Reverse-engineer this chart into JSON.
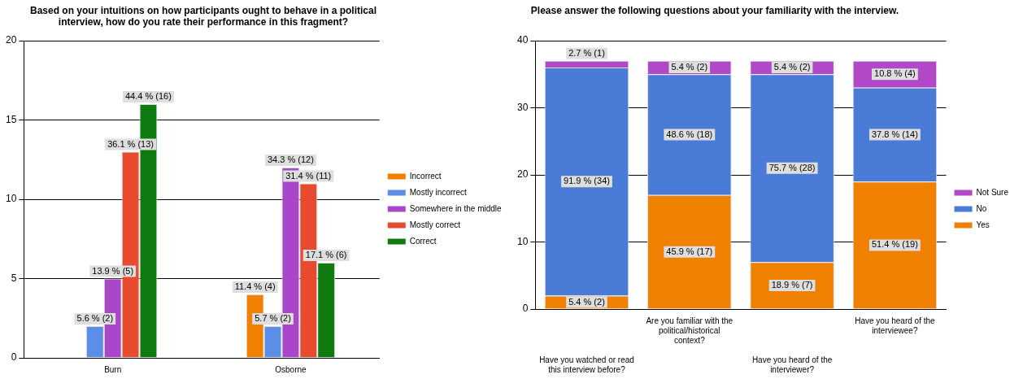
{
  "chart_data": [
    {
      "type": "bar",
      "title": "Based on your intuitions on how participants ought to behave in a political interview, how do you rate their performance in this fragment?",
      "categories": [
        "Burn",
        "Osborne"
      ],
      "series": [
        {
          "name": "Incorrect",
          "color": "#f08000",
          "values": [
            0,
            4
          ],
          "value_labels": [
            null,
            "11.4 % (4)"
          ]
        },
        {
          "name": "Mostly incorrect",
          "color": "#5b8ee6",
          "values": [
            2,
            2
          ],
          "value_labels": [
            "5.6 % (2)",
            "5.7 % (2)"
          ]
        },
        {
          "name": "Somewhere in the middle",
          "color": "#a847c8",
          "values": [
            5,
            12
          ],
          "value_labels": [
            "13.9 % (5)",
            "34.3 % (12)"
          ]
        },
        {
          "name": "Mostly correct",
          "color": "#e84a2e",
          "values": [
            13,
            11
          ],
          "value_labels": [
            "36.1 % (13)",
            "31.4 % (11)"
          ]
        },
        {
          "name": "Correct",
          "color": "#0f7a0f",
          "values": [
            16,
            6
          ],
          "value_labels": [
            "44.4 % (16)",
            "17.1 % (6)"
          ]
        }
      ],
      "ylim": [
        0,
        20
      ],
      "yticks": [
        0,
        5,
        10,
        15,
        20
      ],
      "grid": "y",
      "legend": "right"
    },
    {
      "type": "bar",
      "title": "Please answer the following questions about your familiarity with the interview.",
      "categories": [
        "Have you watched or read this interview before?",
        "Are you familiar with the political/historical context?",
        "Have you heard of the interviewer?",
        "Have you heard of the interviewee?"
      ],
      "stacked": true,
      "series": [
        {
          "name": "Yes",
          "color": "#f08000",
          "values": [
            2,
            17,
            7,
            19
          ],
          "value_labels": [
            "5.4 % (2)",
            "45.9 % (17)",
            "18.9 % (7)",
            "51.4 % (19)"
          ]
        },
        {
          "name": "No",
          "color": "#4a7bd6",
          "values": [
            34,
            18,
            28,
            14
          ],
          "value_labels": [
            "91.9 % (34)",
            "48.6 % (18)",
            "75.7 % (28)",
            "37.8 % (14)"
          ]
        },
        {
          "name": "Not Sure",
          "color": "#b048c8",
          "values": [
            1,
            2,
            2,
            4
          ],
          "value_labels": [
            "2.7 % (1)",
            "5.4 % (2)",
            "5.4 % (2)",
            "10.8 % (4)"
          ]
        }
      ],
      "ylim": [
        0,
        40
      ],
      "yticks": [
        0,
        10,
        20,
        30,
        40
      ],
      "grid": "y",
      "legend": "right"
    }
  ]
}
